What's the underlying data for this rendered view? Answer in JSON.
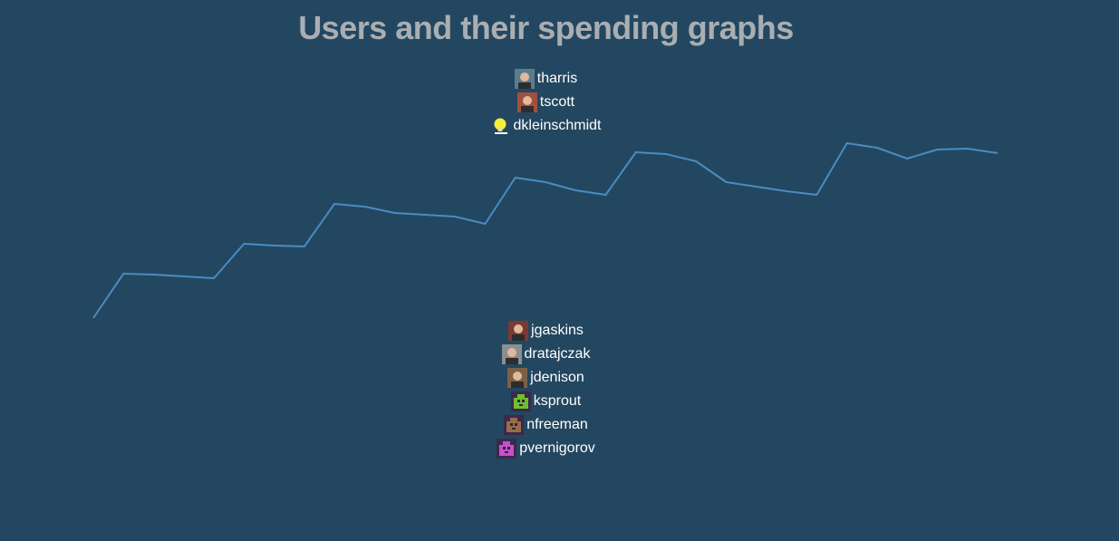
{
  "title": "Users and their spending graphs",
  "top_users": [
    {
      "username": "tharris",
      "avatar": "photo-avatar-icon",
      "color": "#5a7d8c"
    },
    {
      "username": "tscott",
      "avatar": "photo-avatar-icon",
      "color": "#a0513b"
    },
    {
      "username": "dkleinschmidt",
      "avatar": "lightbulb-avatar-icon",
      "color": "#f5ef3a"
    }
  ],
  "bottom_users": [
    {
      "username": "jgaskins",
      "avatar": "photo-avatar-icon",
      "color": "#7a3a32"
    },
    {
      "username": "dratajczak",
      "avatar": "photo-avatar-icon",
      "color": "#8b8f92"
    },
    {
      "username": "jdenison",
      "avatar": "photo-avatar-icon",
      "color": "#7c6149"
    },
    {
      "username": "ksprout",
      "avatar": "pixel-avatar-icon",
      "color": "#6fbf2f"
    },
    {
      "username": "nfreeman",
      "avatar": "pixel-avatar-icon",
      "color": "#9a6a4a"
    },
    {
      "username": "pvernigorov",
      "avatar": "pixel-avatar-icon",
      "color": "#c74fd0"
    }
  ],
  "chart_data": {
    "type": "line",
    "line_color": "#4a8bc2",
    "x": [
      0,
      1,
      2,
      3,
      4,
      5,
      6,
      7,
      8,
      9,
      10,
      11,
      12,
      13,
      14,
      15,
      16,
      17,
      18,
      19,
      20,
      21,
      22,
      23,
      24,
      25,
      26,
      27,
      28,
      29,
      30
    ],
    "values": [
      0,
      49,
      48,
      46,
      44,
      82,
      80,
      79,
      126,
      123,
      116,
      114,
      112,
      104,
      155,
      150,
      141,
      136,
      183,
      181,
      173,
      150,
      145,
      140,
      136,
      193,
      188,
      176,
      186,
      187,
      182
    ]
  }
}
